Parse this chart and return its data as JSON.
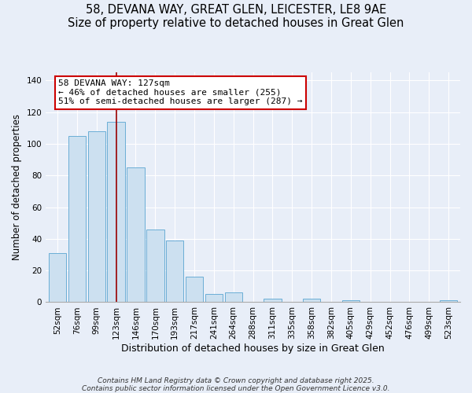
{
  "title": "58, DEVANA WAY, GREAT GLEN, LEICESTER, LE8 9AE",
  "subtitle": "Size of property relative to detached houses in Great Glen",
  "xlabel": "Distribution of detached houses by size in Great Glen",
  "ylabel": "Number of detached properties",
  "bar_labels": [
    "52sqm",
    "76sqm",
    "99sqm",
    "123sqm",
    "146sqm",
    "170sqm",
    "193sqm",
    "217sqm",
    "241sqm",
    "264sqm",
    "288sqm",
    "311sqm",
    "335sqm",
    "358sqm",
    "382sqm",
    "405sqm",
    "429sqm",
    "452sqm",
    "476sqm",
    "499sqm",
    "523sqm"
  ],
  "bar_values": [
    31,
    105,
    108,
    114,
    85,
    46,
    39,
    16,
    5,
    6,
    0,
    2,
    0,
    2,
    0,
    1,
    0,
    0,
    0,
    0,
    1
  ],
  "bar_color": "#cce0f0",
  "bar_edge_color": "#6baed6",
  "vline_x_index": 3,
  "vline_color": "#990000",
  "annotation_title": "58 DEVANA WAY: 127sqm",
  "annotation_line1": "← 46% of detached houses are smaller (255)",
  "annotation_line2": "51% of semi-detached houses are larger (287) →",
  "annotation_box_color": "#ffffff",
  "annotation_box_edge": "#cc0000",
  "ylim": [
    0,
    145
  ],
  "yticks": [
    0,
    20,
    40,
    60,
    80,
    100,
    120,
    140
  ],
  "footer1": "Contains HM Land Registry data © Crown copyright and database right 2025.",
  "footer2": "Contains public sector information licensed under the Open Government Licence v3.0.",
  "bg_color": "#e8eef8",
  "plot_bg_color": "#e8eef8",
  "title_fontsize": 10.5,
  "xlabel_fontsize": 9,
  "ylabel_fontsize": 8.5,
  "tick_fontsize": 7.5,
  "footer_fontsize": 6.5,
  "annotation_fontsize": 8
}
